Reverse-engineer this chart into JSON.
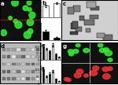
{
  "panels": [
    {
      "type": "fluor_microscopy",
      "bg_color": "#111111",
      "cell_color": "#33ee33"
    },
    {
      "type": "bar_chart_top1",
      "bars": [
        {
          "label": "a",
          "value": 80,
          "color": "#ffffff",
          "error": 8
        },
        {
          "label": "b",
          "value": 95,
          "color": "#ffffff",
          "error": 5
        }
      ],
      "ylim": [
        0,
        120
      ]
    },
    {
      "type": "bar_chart_top2",
      "bars": [
        {
          "label": "a",
          "value": 15,
          "color": "#000000",
          "error": 3
        },
        {
          "label": "b",
          "value": 5,
          "color": "#000000",
          "error": 1
        }
      ],
      "ylim": [
        0,
        30
      ]
    },
    {
      "type": "em_microscopy",
      "bg_color": "#d0d0d0"
    },
    {
      "type": "western_blot",
      "bg_color": "#bbbbbb"
    },
    {
      "type": "bar_chart_bottom1",
      "bars": [
        {
          "label": "WT",
          "value": 100,
          "color": "#000000",
          "error": 10
        },
        {
          "label": "B",
          "value": 80,
          "color": "#ffffff",
          "error": 8
        },
        {
          "label": "C",
          "value": 60,
          "color": "#000000",
          "error": 6
        },
        {
          "label": "D",
          "value": 110,
          "color": "#ffffff",
          "error": 12
        },
        {
          "label": "E",
          "value": 40,
          "color": "#000000",
          "error": 5
        },
        {
          "label": "F",
          "value": 20,
          "color": "#ffffff",
          "error": 3
        }
      ],
      "ylim": [
        0,
        130
      ]
    },
    {
      "type": "bar_chart_bottom2",
      "bars": [
        {
          "label": "WT",
          "value": 100,
          "color": "#000000",
          "error": 10
        },
        {
          "label": "B",
          "value": 50,
          "color": "#ffffff",
          "error": 6
        },
        {
          "label": "C",
          "value": 70,
          "color": "#000000",
          "error": 7
        },
        {
          "label": "D",
          "value": 90,
          "color": "#ffffff",
          "error": 9
        },
        {
          "label": "E",
          "value": 30,
          "color": "#000000",
          "error": 4
        },
        {
          "label": "F",
          "value": 15,
          "color": "#ffffff",
          "error": 2
        }
      ],
      "ylim": [
        0,
        130
      ]
    },
    {
      "type": "fluor_microscopy2",
      "bg_color": "#111111"
    }
  ],
  "figure_bg": "#ffffff",
  "label_fontsize": 5
}
